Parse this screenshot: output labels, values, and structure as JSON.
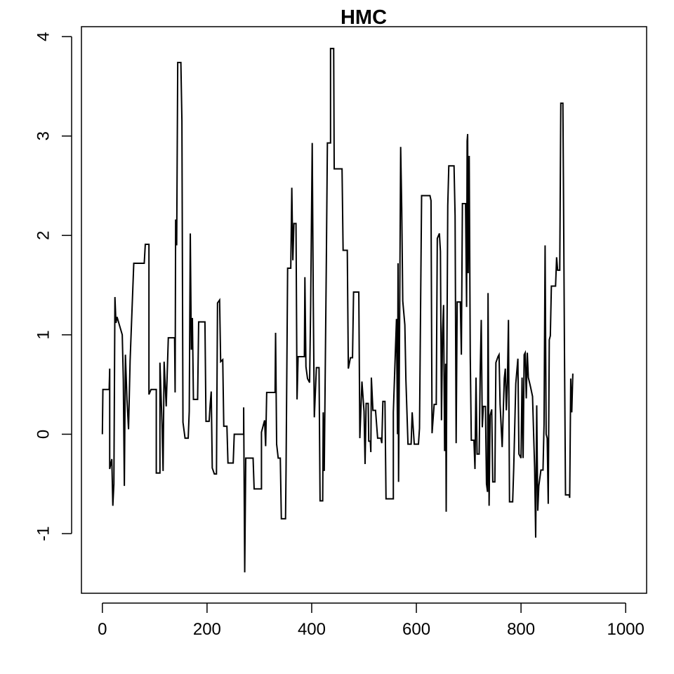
{
  "chart_data": {
    "type": "line",
    "title": "HMC",
    "xlabel": "",
    "ylabel": "",
    "xlim": [
      -40,
      1040
    ],
    "ylim": [
      -1.6,
      4.1
    ],
    "x_ticks": [
      0,
      200,
      400,
      600,
      800,
      1000
    ],
    "y_ticks": [
      -1,
      0,
      1,
      2,
      3,
      4
    ],
    "x_tick_labels": [
      "0",
      "200",
      "400",
      "600",
      "800",
      "1000"
    ],
    "y_tick_labels": [
      "-1",
      "0",
      "1",
      "2",
      "3",
      "4"
    ],
    "line_style": "step",
    "line_color": "#000000",
    "grid": false,
    "legend": "none",
    "series": [
      {
        "points": [
          [
            0,
            0.0
          ],
          [
            1,
            0.45
          ],
          [
            13,
            0.45
          ],
          [
            14,
            0.66
          ],
          [
            14,
            -0.35
          ],
          [
            18,
            -0.25
          ],
          [
            20,
            -0.72
          ],
          [
            22,
            -0.5
          ],
          [
            24,
            1.38
          ],
          [
            26,
            1.12
          ],
          [
            28,
            1.18
          ],
          [
            38,
            1.0
          ],
          [
            40,
            0.55
          ],
          [
            42,
            -0.52
          ],
          [
            44,
            0.8
          ],
          [
            47,
            0.35
          ],
          [
            50,
            0.05
          ],
          [
            53,
            0.74
          ],
          [
            60,
            1.72
          ],
          [
            80,
            1.72
          ],
          [
            82,
            1.91
          ],
          [
            89,
            1.91
          ],
          [
            89,
            0.4
          ],
          [
            93,
            0.45
          ],
          [
            103,
            0.45
          ],
          [
            103,
            -0.39
          ],
          [
            110,
            -0.39
          ],
          [
            110,
            0.72
          ],
          [
            114,
            0.1
          ],
          [
            116,
            -0.37
          ],
          [
            118,
            0.73
          ],
          [
            122,
            0.28
          ],
          [
            126,
            0.97
          ],
          [
            138,
            0.97
          ],
          [
            139,
            0.42
          ],
          [
            140,
            2.16
          ],
          [
            142,
            1.9
          ],
          [
            144,
            3.74
          ],
          [
            150,
            3.74
          ],
          [
            152,
            3.15
          ],
          [
            154,
            0.12
          ],
          [
            158,
            -0.04
          ],
          [
            164,
            -0.04
          ],
          [
            166,
            0.23
          ],
          [
            168,
            2.02
          ],
          [
            170,
            0.85
          ],
          [
            172,
            1.17
          ],
          [
            174,
            0.35
          ],
          [
            182,
            0.35
          ],
          [
            184,
            1.13
          ],
          [
            196,
            1.13
          ],
          [
            198,
            0.13
          ],
          [
            204,
            0.13
          ],
          [
            206,
            0.3
          ],
          [
            208,
            0.43
          ],
          [
            210,
            -0.34
          ],
          [
            214,
            -0.4
          ],
          [
            218,
            -0.4
          ],
          [
            220,
            1.32
          ],
          [
            224,
            1.35
          ],
          [
            226,
            0.73
          ],
          [
            230,
            0.75
          ],
          [
            232,
            0.08
          ],
          [
            238,
            0.08
          ],
          [
            240,
            -0.29
          ],
          [
            250,
            -0.29
          ],
          [
            252,
            0.0
          ],
          [
            270,
            0.0
          ],
          [
            270,
            0.27
          ],
          [
            272,
            -1.39
          ],
          [
            274,
            -0.24
          ],
          [
            288,
            -0.24
          ],
          [
            290,
            -0.55
          ],
          [
            304,
            -0.55
          ],
          [
            304,
            0.02
          ],
          [
            310,
            0.14
          ],
          [
            312,
            -0.12
          ],
          [
            314,
            0.42
          ],
          [
            330,
            0.42
          ],
          [
            331,
            1.02
          ],
          [
            333,
            -0.1
          ],
          [
            336,
            -0.24
          ],
          [
            340,
            -0.24
          ],
          [
            342,
            -0.85
          ],
          [
            350,
            -0.85
          ],
          [
            351,
            -0.35
          ],
          [
            354,
            1.67
          ],
          [
            360,
            1.67
          ],
          [
            362,
            2.48
          ],
          [
            364,
            1.75
          ],
          [
            366,
            2.12
          ],
          [
            370,
            2.12
          ],
          [
            372,
            0.35
          ],
          [
            374,
            0.78
          ],
          [
            386,
            0.78
          ],
          [
            387,
            1.58
          ],
          [
            389,
            0.68
          ],
          [
            392,
            0.56
          ],
          [
            396,
            0.52
          ],
          [
            398,
            1.29
          ],
          [
            401,
            2.93
          ],
          [
            403,
            1.35
          ],
          [
            405,
            0.17
          ],
          [
            409,
            0.67
          ],
          [
            414,
            0.67
          ],
          [
            416,
            -0.67
          ],
          [
            421,
            -0.67
          ],
          [
            422,
            0.22
          ],
          [
            424,
            -0.37
          ],
          [
            428,
            1.75
          ],
          [
            430,
            2.93
          ],
          [
            436,
            2.93
          ],
          [
            436,
            3.88
          ],
          [
            442,
            3.88
          ],
          [
            443,
            2.67
          ],
          [
            458,
            2.67
          ],
          [
            460,
            1.85
          ],
          [
            468,
            1.85
          ],
          [
            470,
            0.66
          ],
          [
            474,
            0.77
          ],
          [
            478,
            0.77
          ],
          [
            480,
            1.43
          ],
          [
            490,
            1.43
          ],
          [
            492,
            -0.04
          ],
          [
            496,
            0.53
          ],
          [
            500,
            0.23
          ],
          [
            502,
            -0.3
          ],
          [
            504,
            0.31
          ],
          [
            508,
            0.31
          ],
          [
            509,
            -0.07
          ],
          [
            512,
            -0.07
          ],
          [
            513,
            -0.18
          ],
          [
            514,
            0.57
          ],
          [
            517,
            0.24
          ],
          [
            522,
            0.24
          ],
          [
            526,
            -0.04
          ],
          [
            532,
            -0.04
          ],
          [
            534,
            -0.09
          ],
          [
            536,
            0.33
          ],
          [
            540,
            0.33
          ],
          [
            542,
            -0.65
          ],
          [
            556,
            -0.65
          ],
          [
            556,
            0.22
          ],
          [
            560,
            0.85
          ],
          [
            562,
            1.16
          ],
          [
            564,
            0.0
          ],
          [
            565,
            1.72
          ],
          [
            566,
            -0.48
          ],
          [
            568,
            1.12
          ],
          [
            570,
            2.89
          ],
          [
            572,
            2.28
          ],
          [
            574,
            1.34
          ],
          [
            578,
            1.1
          ],
          [
            580,
            0.55
          ],
          [
            584,
            -0.1
          ],
          [
            590,
            -0.1
          ],
          [
            592,
            0.22
          ],
          [
            596,
            -0.1
          ],
          [
            604,
            -0.1
          ],
          [
            606,
            0.06
          ],
          [
            610,
            2.4
          ],
          [
            626,
            2.4
          ],
          [
            628,
            2.35
          ],
          [
            630,
            0.01
          ],
          [
            634,
            0.3
          ],
          [
            638,
            0.3
          ],
          [
            640,
            1.97
          ],
          [
            644,
            2.02
          ],
          [
            646,
            1.84
          ],
          [
            648,
            0.14
          ],
          [
            650,
            1.02
          ],
          [
            652,
            1.3
          ],
          [
            654,
            -0.17
          ],
          [
            656,
            0.71
          ],
          [
            657,
            -0.78
          ],
          [
            658,
            0.49
          ],
          [
            660,
            2.3
          ],
          [
            662,
            2.7
          ],
          [
            672,
            2.7
          ],
          [
            674,
            2.2
          ],
          [
            676,
            -0.09
          ],
          [
            678,
            1.33
          ],
          [
            684,
            1.33
          ],
          [
            686,
            0.8
          ],
          [
            688,
            2.32
          ],
          [
            694,
            2.32
          ],
          [
            696,
            1.28
          ],
          [
            697,
            2.95
          ],
          [
            698,
            3.02
          ],
          [
            699,
            1.62
          ],
          [
            701,
            2.8
          ],
          [
            703,
            0.78
          ],
          [
            705,
            -0.06
          ],
          [
            710,
            -0.06
          ],
          [
            712,
            -0.35
          ],
          [
            714,
            0.57
          ],
          [
            716,
            -0.2
          ],
          [
            720,
            -0.2
          ],
          [
            722,
            0.62
          ],
          [
            724,
            1.15
          ],
          [
            726,
            0.07
          ],
          [
            728,
            0.28
          ],
          [
            732,
            0.28
          ],
          [
            734,
            -0.5
          ],
          [
            736,
            -0.58
          ],
          [
            737,
            1.42
          ],
          [
            739,
            -0.72
          ],
          [
            741,
            0.19
          ],
          [
            744,
            0.25
          ],
          [
            746,
            -0.48
          ],
          [
            750,
            -0.48
          ],
          [
            752,
            0.72
          ],
          [
            756,
            0.78
          ],
          [
            758,
            0.8
          ],
          [
            760,
            0.3
          ],
          [
            764,
            -0.13
          ],
          [
            768,
            0.56
          ],
          [
            770,
            0.66
          ],
          [
            772,
            0.24
          ],
          [
            774,
            0.53
          ],
          [
            776,
            1.15
          ],
          [
            778,
            -0.68
          ],
          [
            784,
            -0.68
          ],
          [
            786,
            -0.35
          ],
          [
            790,
            0.51
          ],
          [
            794,
            0.76
          ],
          [
            796,
            -0.2
          ],
          [
            800,
            -0.24
          ],
          [
            802,
            0.57
          ],
          [
            804,
            -0.24
          ],
          [
            806,
            0.8
          ],
          [
            808,
            0.82
          ],
          [
            810,
            0.36
          ],
          [
            812,
            0.82
          ],
          [
            814,
            0.57
          ],
          [
            818,
            0.48
          ],
          [
            822,
            0.38
          ],
          [
            826,
            -0.34
          ],
          [
            828,
            -1.04
          ],
          [
            830,
            0.29
          ],
          [
            832,
            -0.77
          ],
          [
            834,
            -0.52
          ],
          [
            838,
            -0.36
          ],
          [
            842,
            -0.36
          ],
          [
            844,
            0.1
          ],
          [
            846,
            1.9
          ],
          [
            848,
            0.0
          ],
          [
            850,
            -0.04
          ],
          [
            852,
            -0.7
          ],
          [
            854,
            0.95
          ],
          [
            856,
            0.99
          ],
          [
            858,
            1.49
          ],
          [
            866,
            1.49
          ],
          [
            868,
            1.78
          ],
          [
            870,
            1.65
          ],
          [
            874,
            1.65
          ],
          [
            876,
            3.33
          ],
          [
            880,
            3.33
          ],
          [
            881,
            2.58
          ],
          [
            883,
            0.85
          ],
          [
            885,
            -0.61
          ],
          [
            892,
            -0.61
          ],
          [
            893,
            -0.64
          ],
          [
            895,
            0.56
          ],
          [
            897,
            0.22
          ],
          [
            899,
            0.61
          ]
        ]
      }
    ]
  }
}
